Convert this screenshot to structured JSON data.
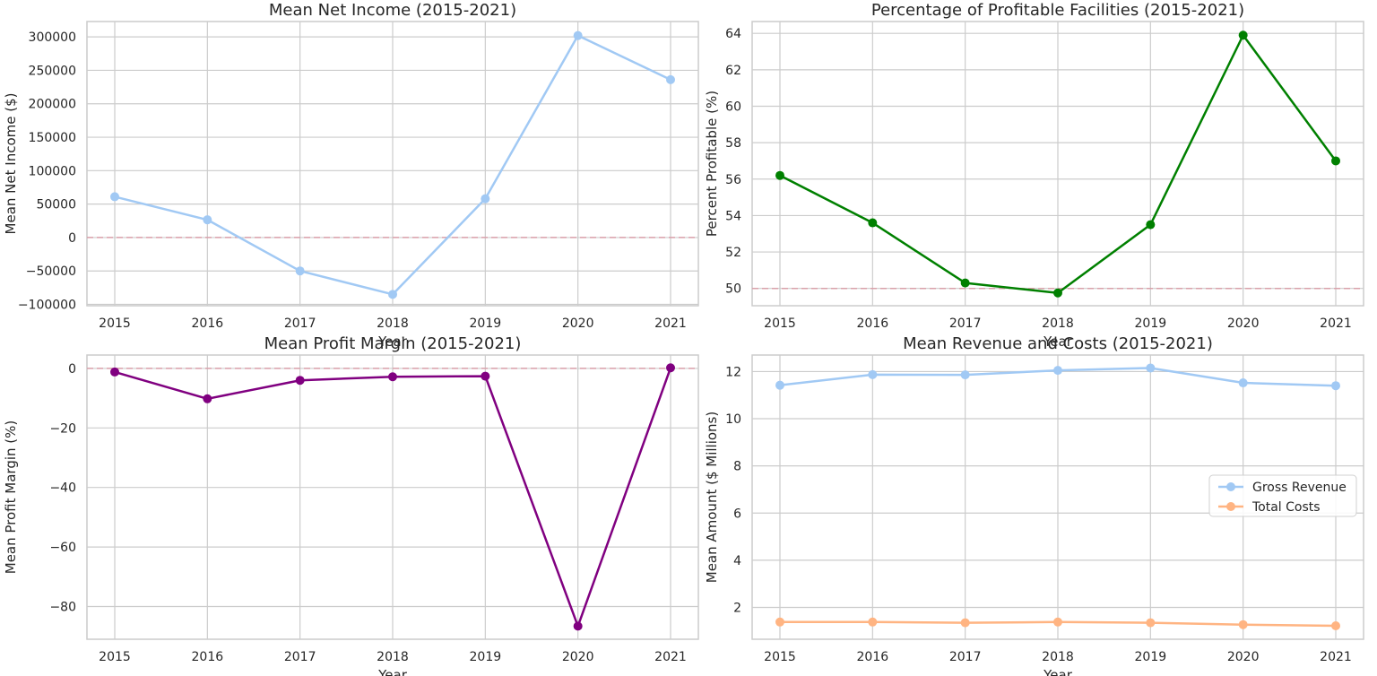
{
  "chart_data": [
    {
      "type": "line",
      "title": "Mean Net Income (2015-2021)",
      "xlabel": "Year",
      "ylabel": "Mean Net Income ($)",
      "x": [
        2015,
        2016,
        2017,
        2018,
        2019,
        2020,
        2021
      ],
      "series": [
        {
          "color": "#a1c9f4",
          "values": [
            61000,
            26500,
            -50000,
            -85000,
            58000,
            302000,
            236000
          ]
        }
      ],
      "yticks": [
        -100000,
        -50000,
        0,
        50000,
        100000,
        150000,
        200000,
        250000,
        300000
      ],
      "ytick_labels": [
        "−100000",
        "−50000",
        "0",
        "50000",
        "100000",
        "150000",
        "200000",
        "250000",
        "300000"
      ],
      "ylim": [
        -102000,
        323000
      ],
      "reference_line": {
        "value": 0,
        "color": "#d9a0aa",
        "style": "dashed"
      },
      "grid": true,
      "legend": false
    },
    {
      "type": "line",
      "title": "Percentage of Profitable Facilities (2015-2021)",
      "xlabel": "Year",
      "ylabel": "Percent Profitable (%)",
      "x": [
        2015,
        2016,
        2017,
        2018,
        2019,
        2020,
        2021
      ],
      "series": [
        {
          "color": "#008000",
          "values": [
            56.2,
            53.6,
            50.3,
            49.75,
            53.5,
            63.9,
            57.0
          ]
        }
      ],
      "yticks": [
        50,
        52,
        54,
        56,
        58,
        60,
        62,
        64
      ],
      "ytick_labels": [
        "50",
        "52",
        "54",
        "56",
        "58",
        "60",
        "62",
        "64"
      ],
      "ylim": [
        49.05,
        64.65
      ],
      "reference_line": {
        "value": 50,
        "color": "#d9a0aa",
        "style": "dashed"
      },
      "grid": true,
      "legend": false
    },
    {
      "type": "line",
      "title": "Mean Profit Margin (2015-2021)",
      "xlabel": "Year",
      "ylabel": "Mean Profit Margin (%)",
      "x": [
        2015,
        2016,
        2017,
        2018,
        2019,
        2020,
        2021
      ],
      "series": [
        {
          "color": "#800080",
          "values": [
            -1.2,
            -10.2,
            -4.0,
            -2.8,
            -2.6,
            -86.6,
            0.2
          ]
        }
      ],
      "yticks": [
        -80,
        -60,
        -40,
        -20,
        0
      ],
      "ytick_labels": [
        "−80",
        "−60",
        "−40",
        "−20",
        "0"
      ],
      "ylim": [
        -91,
        4.5
      ],
      "reference_line": {
        "value": 0,
        "color": "#d9a0aa",
        "style": "dashed"
      },
      "grid": true,
      "legend": false
    },
    {
      "type": "line",
      "title": "Mean Revenue and Costs (2015-2021)",
      "xlabel": "Year",
      "ylabel": "Mean Amount ($ Millions)",
      "x": [
        2015,
        2016,
        2017,
        2018,
        2019,
        2020,
        2021
      ],
      "series": [
        {
          "name": "Gross Revenue",
          "color": "#a1c9f4",
          "values": [
            11.42,
            11.87,
            11.86,
            12.05,
            12.15,
            11.52,
            11.4
          ]
        },
        {
          "name": "Total Costs",
          "color": "#ffb482",
          "values": [
            1.38,
            1.38,
            1.35,
            1.38,
            1.35,
            1.27,
            1.22
          ]
        }
      ],
      "yticks": [
        2,
        4,
        6,
        8,
        10,
        12
      ],
      "ytick_labels": [
        "2",
        "4",
        "6",
        "8",
        "10",
        "12"
      ],
      "ylim": [
        0.65,
        12.7
      ],
      "grid": true,
      "legend": "center-right"
    }
  ]
}
